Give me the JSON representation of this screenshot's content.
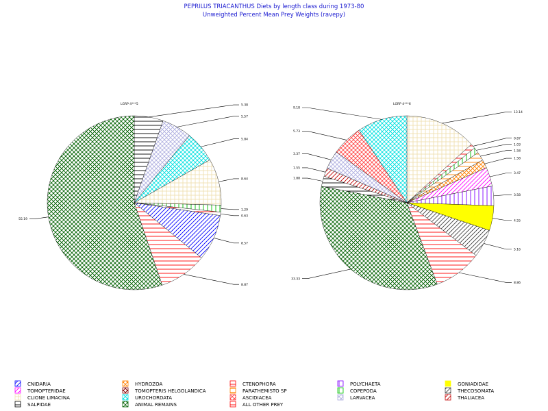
{
  "chart_data": [
    {
      "type": "pie",
      "title": "PEPRILUS TRIACANTHUS Diets by length class during 1973-80",
      "subtitle": "Unweighted Percent Mean Prey Weights (ravepy)",
      "charts": [
        {
          "header": "LGRP 4***5",
          "slices": [
            {
              "category": "SALPIDAE",
              "value": 5.38,
              "label": "5.38"
            },
            {
              "category": "LARVACEA",
              "value": 5.57,
              "label": "5.57"
            },
            {
              "category": "UROCHORDATA",
              "value": 5.84,
              "label": "5.84"
            },
            {
              "category": "CLIONE LIMACINA",
              "value": 8.64,
              "label": "8.64"
            },
            {
              "category": "COPEPODA",
              "value": 1.29,
              "label": "1.29"
            },
            {
              "category": "ALL OTHER PREY",
              "value": 0.63,
              "label": "0.63"
            },
            {
              "category": "CNIDARIA",
              "value": 8.57,
              "label": "8.57"
            },
            {
              "category": "CTENOPHORA",
              "value": 8.87,
              "label": "8.87"
            },
            {
              "category": "ANIMAL REMAINS",
              "value": 55.19,
              "label": "55.19"
            }
          ]
        },
        {
          "header": "LGRP 4***6",
          "slices": [
            {
              "category": "CLIONE LIMACINA",
              "value": 13.14,
              "label": "13.14"
            },
            {
              "category": "ALL OTHER PREY",
              "value": 0.87,
              "label": "0.87"
            },
            {
              "category": "COPEPODA",
              "value": 1.03,
              "label": "1.03"
            },
            {
              "category": "PARATHEMISTO SP",
              "value": 1.58,
              "label": "1.58"
            },
            {
              "category": "HYDROZOA",
              "value": 1.58,
              "label": "1.58"
            },
            {
              "category": "TOMOPTERIDAE",
              "value": 3.47,
              "label": "3.47"
            },
            {
              "category": "POLYCHAETA",
              "value": 3.58,
              "label": "3.58"
            },
            {
              "category": "GONIADIDAE",
              "value": 4.55,
              "label": "4.55"
            },
            {
              "category": "THECOSOMATA",
              "value": 5.16,
              "label": "5.16"
            },
            {
              "category": "CTENOPHORA",
              "value": 8.86,
              "label": "8.86"
            },
            {
              "category": "ANIMAL REMAINS",
              "value": 33.33,
              "label": "33.33"
            },
            {
              "category": "SALPIDAE",
              "value": 1.88,
              "label": "1.88"
            },
            {
              "category": "THALIACEA",
              "value": 1.55,
              "label": "1.55"
            },
            {
              "category": "LARVACEA",
              "value": 3.37,
              "label": "3.37"
            },
            {
              "category": "ASCIDIACEA",
              "value": 5.73,
              "label": "5.73"
            },
            {
              "category": "UROCHORDATA",
              "value": 9.18,
              "label": "9.18"
            }
          ]
        }
      ],
      "legend": [
        {
          "name": "CNIDARIA",
          "color": "#0000ff",
          "pattern": "diag-right"
        },
        {
          "name": "HYDROZOA",
          "color": "#ff8000",
          "pattern": "cross-diag"
        },
        {
          "name": "CTENOPHORA",
          "color": "#ff0000",
          "pattern": "horiz"
        },
        {
          "name": "POLYCHAETA",
          "color": "#8000ff",
          "pattern": "vert"
        },
        {
          "name": "GONIADIDAE",
          "color": "#ffff00",
          "pattern": "solid"
        },
        {
          "name": "TOMOPTERIDAE",
          "color": "#ff00ff",
          "pattern": "diag-right"
        },
        {
          "name": "TOMOPTERIS HELGOLANDICA",
          "color": "#800000",
          "pattern": "cross-diag"
        },
        {
          "name": "PARATHEMISTO SP",
          "color": "#ff8000",
          "pattern": "horiz"
        },
        {
          "name": "COPEPODA",
          "color": "#00c000",
          "pattern": "vert"
        },
        {
          "name": "THECOSOMATA",
          "color": "#404040",
          "pattern": "diag-right"
        },
        {
          "name": "CLIONE LIMACINA",
          "color": "#f0e0b0",
          "pattern": "grid"
        },
        {
          "name": "UROCHORDATA",
          "color": "#00e0e0",
          "pattern": "cross-diag"
        },
        {
          "name": "ASCIDIACEA",
          "color": "#ff4040",
          "pattern": "cross-diag"
        },
        {
          "name": "LARVACEA",
          "color": "#b0b0e0",
          "pattern": "cross-diag"
        },
        {
          "name": "THALIACEA",
          "color": "#c00000",
          "pattern": "diag-right"
        },
        {
          "name": "SALPIDAE",
          "color": "#000000",
          "pattern": "horiz"
        },
        {
          "name": "ANIMAL REMAINS",
          "color": "#006000",
          "pattern": "cross-diag"
        },
        {
          "name": "ALL OTHER PREY",
          "color": "#ff0000",
          "pattern": "horiz"
        }
      ]
    }
  ]
}
